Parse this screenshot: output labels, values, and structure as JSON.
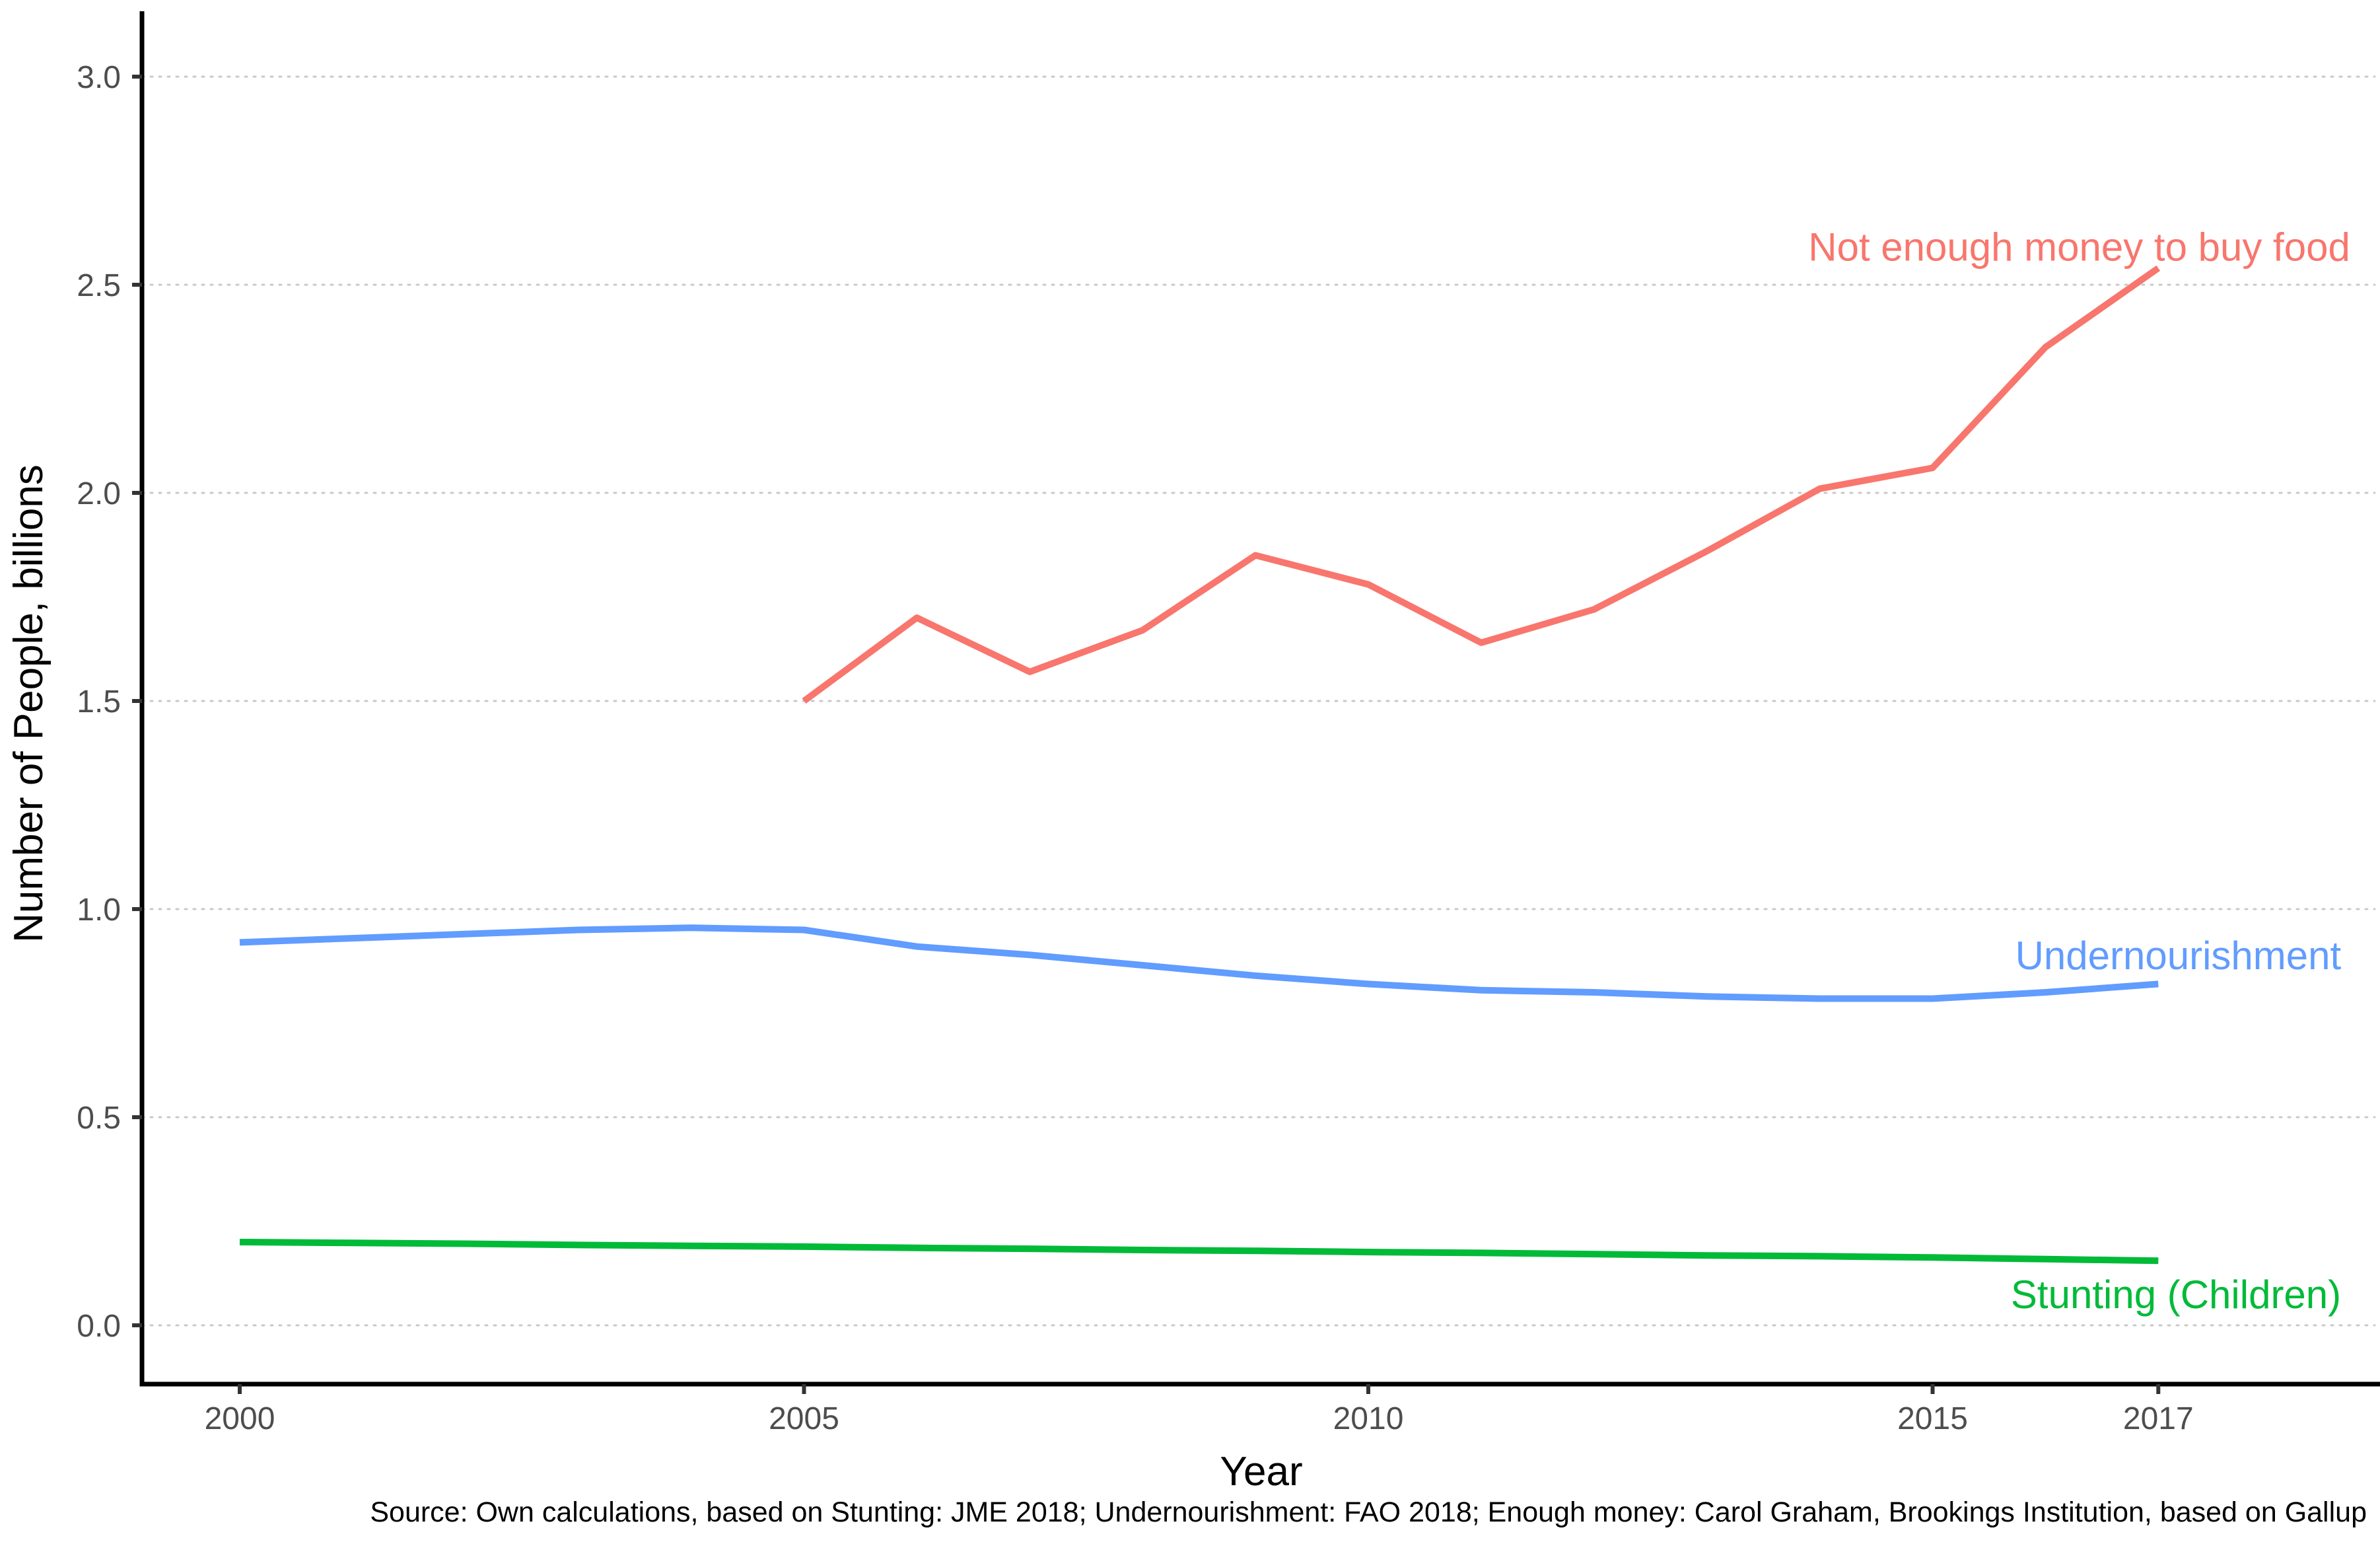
{
  "chart_data": {
    "type": "line",
    "title": "",
    "xlabel": "Year",
    "ylabel": "Number of People, billions",
    "source": "Source: Own calculations, based on Stunting: JME 2018; Undernourishment: FAO 2018; Enough money: Carol Graham, Brookings Institution, based on Gallup",
    "xlim": [
      1999.1,
      2019.0
    ],
    "ylim": [
      -0.14,
      3.16
    ],
    "grid": "horizontal-dotted",
    "legend": "direct-labels-right",
    "background": "#ffffff",
    "x_ticks": [
      {
        "label": "2000",
        "year": 2000
      },
      {
        "label": "2005",
        "year": 2005
      },
      {
        "label": "2010",
        "year": 2010
      },
      {
        "label": "2015",
        "year": 2015
      },
      {
        "label": "2017",
        "year": 2017
      }
    ],
    "y_ticks": [
      {
        "label": "0.0",
        "value": 0.0
      },
      {
        "label": "0.5",
        "value": 0.5
      },
      {
        "label": "1.0",
        "value": 1.0
      },
      {
        "label": "1.5",
        "value": 1.5
      },
      {
        "label": "2.0",
        "value": 2.0
      },
      {
        "label": "2.5",
        "value": 2.5
      },
      {
        "label": "3.0",
        "value": 3.0
      }
    ],
    "series": [
      {
        "name": "Not enough money to buy food",
        "color": "#F8766D",
        "x": [
          2005,
          2006,
          2007,
          2008,
          2009,
          2010,
          2011,
          2012,
          2013,
          2014,
          2015,
          2016,
          2017
        ],
        "values": [
          1.5,
          1.7,
          1.57,
          1.67,
          1.85,
          1.78,
          1.64,
          1.72,
          1.86,
          2.01,
          2.06,
          2.35,
          2.54
        ],
        "label": "Not enough money to buy food",
        "label_anchor": {
          "year": 2018.7,
          "value": 2.59,
          "align": "end"
        }
      },
      {
        "name": "Undernourishment",
        "color": "#619CFF",
        "x": [
          2000,
          2001,
          2002,
          2003,
          2004,
          2005,
          2006,
          2007,
          2008,
          2009,
          2010,
          2011,
          2012,
          2013,
          2014,
          2015,
          2016,
          2017
        ],
        "values": [
          0.92,
          0.93,
          0.94,
          0.95,
          0.955,
          0.95,
          0.91,
          0.89,
          0.865,
          0.84,
          0.82,
          0.805,
          0.8,
          0.79,
          0.785,
          0.785,
          0.8,
          0.82
        ],
        "label": "Undernourishment",
        "label_anchor": {
          "year": 2018.62,
          "value": 0.887,
          "align": "end"
        }
      },
      {
        "name": "Stunting (Children)",
        "color": "#00BA38",
        "x": [
          2000,
          2001,
          2002,
          2003,
          2004,
          2005,
          2006,
          2007,
          2008,
          2009,
          2010,
          2011,
          2012,
          2013,
          2014,
          2015,
          2016,
          2017
        ],
        "values": [
          0.2,
          0.198,
          0.196,
          0.193,
          0.191,
          0.189,
          0.186,
          0.184,
          0.181,
          0.179,
          0.176,
          0.174,
          0.171,
          0.168,
          0.166,
          0.163,
          0.159,
          0.155
        ],
        "label": "Stunting (Children)",
        "label_anchor": {
          "year": 2018.62,
          "value": 0.073,
          "align": "end"
        }
      }
    ],
    "style": {
      "axis_color": "#000000",
      "tick_color": "#333333",
      "tick_label_color": "#4d4d4d",
      "grid_color": "#c9c9c9"
    }
  }
}
